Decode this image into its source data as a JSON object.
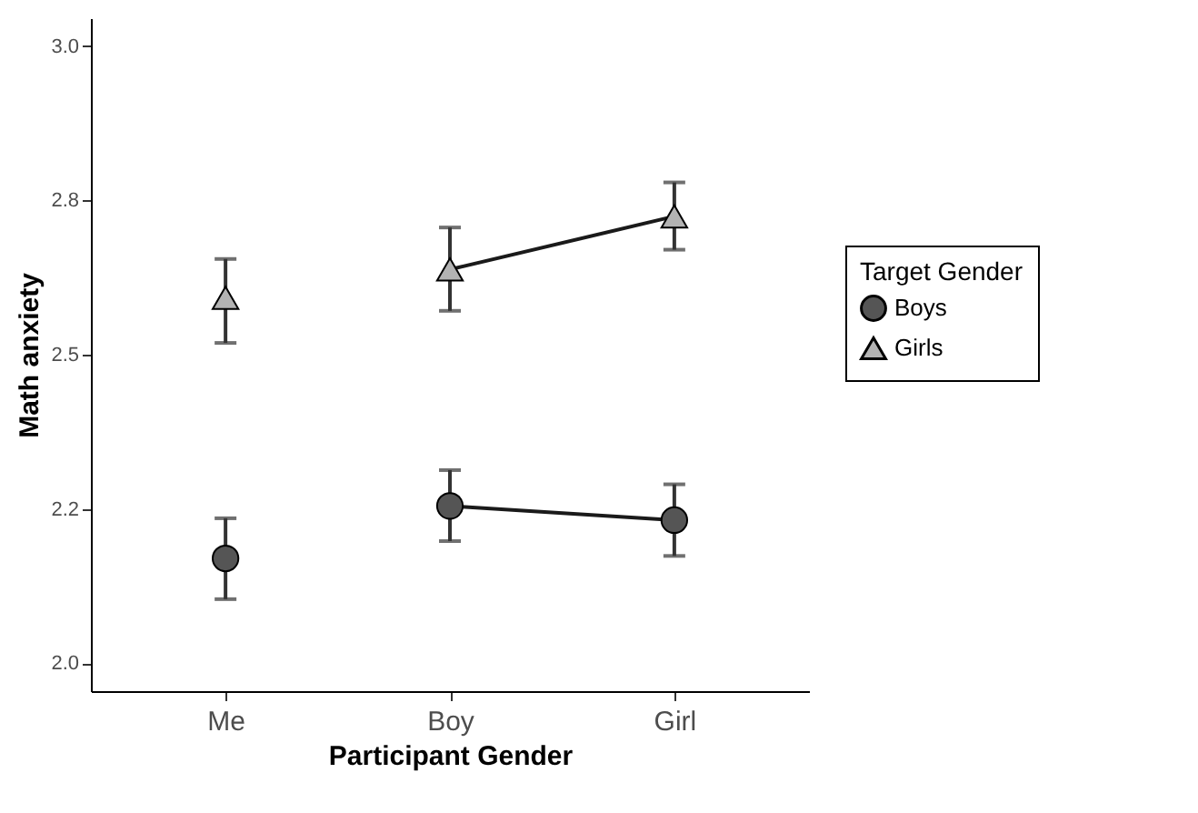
{
  "chart_data": {
    "type": "scatter",
    "xlabel": "Participant Gender",
    "ylabel": "Math anxiety",
    "legend_title": "Target Gender",
    "categories": [
      "Me",
      "Boy",
      "Girl"
    ],
    "series": [
      {
        "name": "Boys",
        "marker": "circle",
        "color": "#555555",
        "values": [
          2.17,
          2.255,
          2.232
        ],
        "errors": [
          [
            2.104,
            2.235
          ],
          [
            2.198,
            2.313
          ],
          [
            2.174,
            2.29
          ]
        ]
      },
      {
        "name": "Girls",
        "marker": "triangle",
        "color": "#b3b3b3",
        "values": [
          2.592,
          2.638,
          2.724
        ],
        "errors": [
          [
            2.519,
            2.655
          ],
          [
            2.571,
            2.706
          ],
          [
            2.67,
            2.779
          ]
        ]
      },
      {
        "type": "line",
        "color": "#1a1a1a",
        "values": [
          null,
          2.255,
          2.232
        ]
      },
      {
        "type": "line",
        "color": "#1a1a1a",
        "values": [
          null,
          2.638,
          2.724
        ]
      }
    ],
    "ylim": [
      1.955,
      3.045
    ],
    "yticks": [
      {
        "value": 2.0,
        "label": "2.0"
      },
      {
        "value": 2.25,
        "label": "2.2"
      },
      {
        "value": 2.5,
        "label": "2.5"
      },
      {
        "value": 2.75,
        "label": "2.8"
      },
      {
        "value": 3.0,
        "label": "3.0"
      }
    ],
    "grid": false,
    "legend": "right"
  }
}
